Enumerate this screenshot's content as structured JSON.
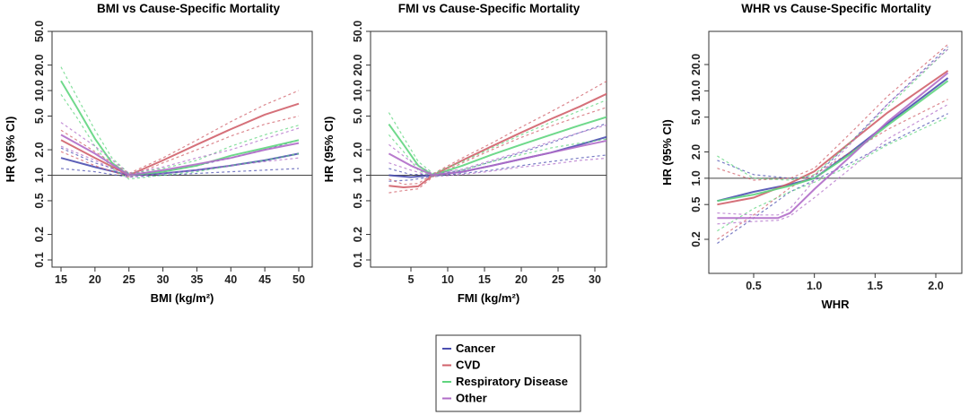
{
  "colors": {
    "cancer": "#4b4fb0",
    "cvd": "#d0606a",
    "respiratory": "#5fd57e",
    "other": "#b06cc8",
    "axis": "#333333"
  },
  "legend": [
    {
      "label": "Cancer",
      "color_key": "cancer"
    },
    {
      "label": "CVD",
      "color_key": "cvd"
    },
    {
      "label": "Respiratory Disease",
      "color_key": "respiratory"
    },
    {
      "label": "Other",
      "color_key": "other"
    }
  ],
  "chart_data": [
    {
      "type": "line",
      "title": "BMI vs Cause-Specific Mortality",
      "xlabel": "BMI (kg/m²)",
      "ylabel": "HR (95% CI)",
      "yscale": "log",
      "xlim": [
        15,
        50
      ],
      "ylim": [
        0.1,
        50.0
      ],
      "xticks": [
        "15",
        "20",
        "25",
        "30",
        "35",
        "40",
        "45",
        "50"
      ],
      "yticks": [
        "0.1",
        "0.2",
        "0.5",
        "1.0",
        "2.0",
        "5.0",
        "10.0",
        "20.0",
        "50.0"
      ],
      "reference_line": 1.0,
      "series": [
        {
          "name": "Cancer",
          "x": [
            15,
            20,
            25,
            30,
            35,
            40,
            45,
            50
          ],
          "y": [
            1.6,
            1.25,
            1.0,
            1.05,
            1.15,
            1.3,
            1.5,
            1.8
          ],
          "lower": [
            1.2,
            1.1,
            0.95,
            1.0,
            1.05,
            1.1,
            1.15,
            1.2
          ],
          "upper": [
            2.1,
            1.4,
            1.05,
            1.1,
            1.3,
            1.6,
            2.0,
            2.6
          ]
        },
        {
          "name": "CVD",
          "x": [
            15,
            20,
            25,
            30,
            35,
            40,
            45,
            50
          ],
          "y": [
            2.6,
            1.6,
            1.0,
            1.5,
            2.3,
            3.5,
            5.2,
            7.0
          ],
          "lower": [
            1.9,
            1.3,
            0.95,
            1.4,
            2.0,
            2.9,
            4.0,
            5.0
          ],
          "upper": [
            3.4,
            1.9,
            1.05,
            1.6,
            2.6,
            4.3,
            6.8,
            10.0
          ]
        },
        {
          "name": "Respiratory Disease",
          "x": [
            15,
            17.5,
            20,
            22.5,
            25,
            30,
            35,
            40,
            45,
            50
          ],
          "y": [
            13.0,
            6.0,
            2.7,
            1.4,
            1.0,
            1.1,
            1.3,
            1.7,
            2.1,
            2.6
          ],
          "lower": [
            9.0,
            4.6,
            2.2,
            1.2,
            0.9,
            1.0,
            1.1,
            1.3,
            1.5,
            1.8
          ],
          "upper": [
            19.0,
            8.0,
            3.4,
            1.6,
            1.05,
            1.2,
            1.5,
            2.2,
            3.0,
            3.9
          ]
        },
        {
          "name": "Other",
          "x": [
            15,
            20,
            25,
            30,
            35,
            40,
            45,
            50
          ],
          "y": [
            3.0,
            1.8,
            1.0,
            1.15,
            1.35,
            1.6,
            2.0,
            2.4
          ],
          "lower": [
            2.2,
            1.5,
            0.95,
            1.05,
            1.15,
            1.3,
            1.45,
            1.6
          ],
          "upper": [
            4.2,
            2.2,
            1.05,
            1.25,
            1.6,
            2.0,
            2.7,
            3.6
          ]
        }
      ]
    },
    {
      "type": "line",
      "title": "FMI vs Cause-Specific Mortality",
      "xlabel": "FMI (kg/m²)",
      "ylabel": "HR (95% CI)",
      "yscale": "log",
      "xlim": [
        1.5,
        32
      ],
      "ylim": [
        0.1,
        50.0
      ],
      "xticks": [
        "5",
        "10",
        "15",
        "20",
        "25",
        "30"
      ],
      "yticks": [
        "0.1",
        "0.2",
        "0.5",
        "1.0",
        "2.0",
        "5.0",
        "10.0",
        "20.0",
        "50.0"
      ],
      "reference_line": 1.0,
      "series": [
        {
          "name": "Cancer",
          "x": [
            2,
            5,
            8,
            12,
            16,
            20,
            24,
            28,
            32
          ],
          "y": [
            1.0,
            0.95,
            1.0,
            1.1,
            1.3,
            1.55,
            1.85,
            2.3,
            2.9
          ],
          "lower": [
            0.85,
            0.88,
            0.97,
            1.05,
            1.15,
            1.3,
            1.45,
            1.6,
            1.75
          ],
          "upper": [
            1.2,
            1.02,
            1.03,
            1.15,
            1.45,
            1.85,
            2.4,
            3.2,
            4.2
          ]
        },
        {
          "name": "CVD",
          "x": [
            2,
            4,
            6,
            8,
            12,
            16,
            20,
            24,
            28,
            32
          ],
          "y": [
            0.75,
            0.72,
            0.74,
            1.0,
            1.5,
            2.2,
            3.2,
            4.6,
            6.5,
            9.5
          ],
          "lower": [
            0.62,
            0.66,
            0.69,
            0.96,
            1.4,
            2.0,
            2.8,
            3.8,
            5.0,
            6.5
          ],
          "upper": [
            0.9,
            0.78,
            0.8,
            1.04,
            1.6,
            2.4,
            3.7,
            5.6,
            8.6,
            13.5
          ]
        },
        {
          "name": "Respiratory Disease",
          "x": [
            2,
            4,
            6,
            8,
            12,
            16,
            20,
            24,
            28,
            32
          ],
          "y": [
            4.0,
            2.3,
            1.3,
            1.0,
            1.3,
            1.75,
            2.3,
            3.0,
            3.9,
            5.0
          ],
          "lower": [
            3.0,
            1.9,
            1.15,
            0.95,
            1.15,
            1.45,
            1.75,
            2.1,
            2.4,
            2.7
          ],
          "upper": [
            5.5,
            2.8,
            1.45,
            1.05,
            1.45,
            2.1,
            3.0,
            4.2,
            5.8,
            8.0
          ]
        },
        {
          "name": "Other",
          "x": [
            2,
            5,
            8,
            12,
            16,
            20,
            24,
            28,
            32
          ],
          "y": [
            1.8,
            1.3,
            1.0,
            1.1,
            1.3,
            1.55,
            1.85,
            2.2,
            2.6
          ],
          "lower": [
            1.4,
            1.15,
            0.96,
            1.02,
            1.12,
            1.25,
            1.35,
            1.5,
            1.6
          ],
          "upper": [
            2.3,
            1.45,
            1.04,
            1.18,
            1.5,
            1.9,
            2.5,
            3.2,
            4.0
          ]
        }
      ]
    },
    {
      "type": "line",
      "title": "WHR vs Cause-Specific Mortality",
      "xlabel": "WHR",
      "ylabel": "HR (95% CI)",
      "yscale": "log",
      "xlim": [
        0.18,
        2.12
      ],
      "ylim": [
        0.15,
        40.0
      ],
      "xticks": [
        "0.5",
        "1.0",
        "1.5",
        "2.0"
      ],
      "yticks": [
        "0.2",
        "0.5",
        "1.0",
        "2.0",
        "5.0",
        "10.0",
        "20.0"
      ],
      "reference_line": 1.0,
      "series": [
        {
          "name": "Cancer",
          "x": [
            0.2,
            0.5,
            0.8,
            1.0,
            1.3,
            1.6,
            2.1
          ],
          "y": [
            0.55,
            0.7,
            0.85,
            1.0,
            2.0,
            4.2,
            14.0
          ],
          "lower": [
            0.18,
            0.35,
            0.7,
            0.95,
            1.5,
            2.5,
            5.5
          ],
          "upper": [
            1.6,
            1.1,
            1.0,
            1.05,
            2.6,
            7.0,
            32.0
          ]
        },
        {
          "name": "CVD",
          "x": [
            0.2,
            0.5,
            0.8,
            1.0,
            1.3,
            1.6,
            2.1
          ],
          "y": [
            0.5,
            0.6,
            0.88,
            1.2,
            2.6,
            5.6,
            17.0
          ],
          "lower": [
            0.2,
            0.38,
            0.78,
            1.1,
            2.0,
            3.6,
            8.0
          ],
          "upper": [
            1.3,
            0.95,
            1.0,
            1.3,
            3.3,
            8.6,
            34.0
          ]
        },
        {
          "name": "Respiratory Disease",
          "x": [
            0.2,
            0.5,
            0.8,
            1.0,
            1.3,
            1.6,
            2.1
          ],
          "y": [
            0.55,
            0.65,
            0.82,
            1.0,
            1.9,
            4.0,
            13.0
          ],
          "lower": [
            0.25,
            0.45,
            0.7,
            0.9,
            1.4,
            2.4,
            5.0
          ],
          "upper": [
            1.8,
            1.0,
            0.95,
            1.1,
            2.6,
            6.5,
            30.0
          ]
        },
        {
          "name": "Other",
          "x": [
            0.2,
            0.5,
            0.7,
            0.8,
            1.0,
            1.3,
            1.6,
            2.1
          ],
          "y": [
            0.35,
            0.35,
            0.35,
            0.4,
            0.75,
            1.8,
            4.4,
            16.0
          ],
          "lower": [
            0.3,
            0.32,
            0.33,
            0.37,
            0.6,
            1.3,
            2.8,
            7.0
          ],
          "upper": [
            0.4,
            0.38,
            0.38,
            0.45,
            0.95,
            2.5,
            7.0,
            30.0
          ]
        }
      ]
    }
  ]
}
